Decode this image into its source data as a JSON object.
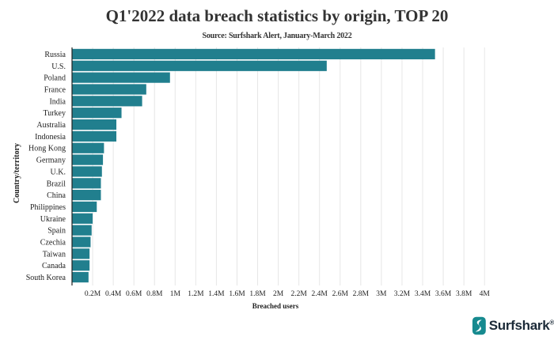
{
  "title": "Q1'2022 data breach statistics by origin, TOP 20",
  "subtitle": "Source: Surfshark Alert, January-March 2022",
  "brand": {
    "name": "Surfshark",
    "registered": "®",
    "logo_icon": "surfshark-s-logo-icon",
    "color": "#178a8f"
  },
  "colors": {
    "bar": "#217f8e",
    "grid": "#e6e6e6",
    "axis": "#222222"
  },
  "chart_data": {
    "type": "bar",
    "orientation": "horizontal",
    "title": "Q1'2022 data breach statistics by origin, TOP 20",
    "xlabel": "Breached users",
    "ylabel": "Country/territory",
    "xlim": [
      0,
      4000000
    ],
    "grid": "vertical",
    "categories": [
      "Russia",
      "U.S.",
      "Poland",
      "France",
      "India",
      "Turkey",
      "Australia",
      "Indonesia",
      "Hong Kong",
      "Germany",
      "U.K.",
      "Brazil",
      "China",
      "Philippines",
      "Ukraine",
      "Spain",
      "Czechia",
      "Taiwan",
      "Canada",
      "South Korea"
    ],
    "values": [
      3520000,
      2470000,
      950000,
      720000,
      680000,
      480000,
      430000,
      430000,
      310000,
      300000,
      290000,
      280000,
      280000,
      240000,
      200000,
      190000,
      180000,
      170000,
      170000,
      160000
    ],
    "x_ticks": [
      {
        "value": 200000,
        "label": "0.2M"
      },
      {
        "value": 400000,
        "label": "0.4M"
      },
      {
        "value": 600000,
        "label": "0.6M"
      },
      {
        "value": 800000,
        "label": "0.8M"
      },
      {
        "value": 1000000,
        "label": "1M"
      },
      {
        "value": 1200000,
        "label": "1.2M"
      },
      {
        "value": 1400000,
        "label": "1.4M"
      },
      {
        "value": 1600000,
        "label": "1.6M"
      },
      {
        "value": 1800000,
        "label": "1.8M"
      },
      {
        "value": 2000000,
        "label": "2M"
      },
      {
        "value": 2200000,
        "label": "2.2M"
      },
      {
        "value": 2400000,
        "label": "2.4M"
      },
      {
        "value": 2600000,
        "label": "2.6M"
      },
      {
        "value": 2800000,
        "label": "2.8M"
      },
      {
        "value": 3000000,
        "label": "3M"
      },
      {
        "value": 3200000,
        "label": "3.2M"
      },
      {
        "value": 3400000,
        "label": "3.4M"
      },
      {
        "value": 3600000,
        "label": "3.6M"
      },
      {
        "value": 3800000,
        "label": "3.8M"
      },
      {
        "value": 4000000,
        "label": "4M"
      }
    ]
  }
}
